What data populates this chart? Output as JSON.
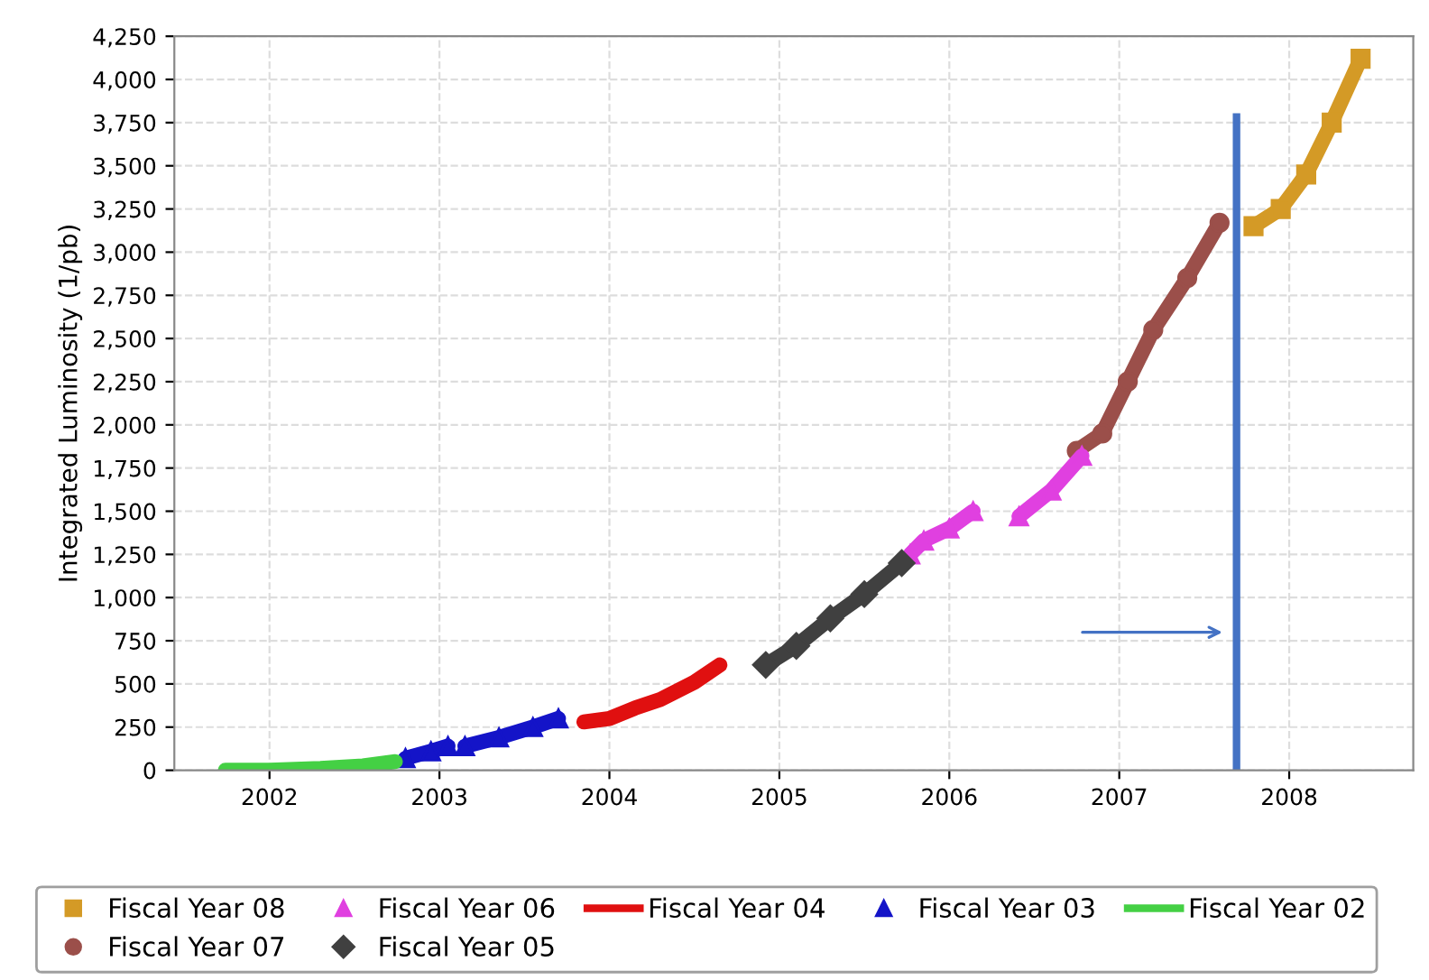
{
  "chart_data": {
    "type": "line",
    "ylabel": "Integrated Luminosity (1/pb)",
    "xlim": [
      2001.44,
      2008.73
    ],
    "xticks": [
      2002,
      2003,
      2004,
      2005,
      2006,
      2007,
      2008
    ],
    "ylim": [
      0,
      4250
    ],
    "yticks": [
      0,
      250,
      500,
      750,
      {
        "value": 1000,
        "label": "1,000"
      },
      {
        "value": 1250,
        "label": "1,250"
      },
      {
        "value": 1500,
        "label": "1,500"
      },
      {
        "value": 1750,
        "label": "1,750"
      },
      {
        "value": 2000,
        "label": "2,000"
      },
      {
        "value": 2250,
        "label": "2,250"
      },
      {
        "value": 2500,
        "label": "2,500"
      },
      {
        "value": 2750,
        "label": "2,750"
      },
      {
        "value": 3000,
        "label": "3,000"
      },
      {
        "value": 3250,
        "label": "3,250"
      },
      {
        "value": 3500,
        "label": "3,500"
      },
      {
        "value": 3750,
        "label": "3,750"
      },
      {
        "value": 4000,
        "label": "4,000"
      },
      {
        "value": 4250,
        "label": "4,250"
      }
    ],
    "grid": true,
    "legend": "bottom",
    "ref_lines": [
      {
        "axis": "x",
        "value": 2007.69,
        "color": "#4472c4"
      }
    ],
    "series": [
      {
        "name": "Fiscal Year 08",
        "color": "#d49a26",
        "marker": "square",
        "x": [
          2007.79,
          2007.95,
          2008.1,
          2008.25,
          2008.42
        ],
        "values": [
          3150,
          3250,
          3450,
          3750,
          4120
        ]
      },
      {
        "name": "Fiscal Year 07",
        "color": "#9b4f4a",
        "marker": "circle",
        "x": [
          2006.75,
          2006.9,
          2007.05,
          2007.2,
          2007.4,
          2007.59
        ],
        "values": [
          1850,
          1950,
          2250,
          2550,
          2850,
          3170
        ]
      },
      {
        "name": "Fiscal Year 06",
        "color": "#e040e0",
        "marker": "triangle",
        "x": [
          2005.77,
          2005.85,
          2006.0,
          2006.14,
          2006.27,
          2006.41,
          2006.6,
          2006.78
        ],
        "values": [
          1250,
          1330,
          1400,
          1500,
          null,
          1470,
          1620,
          1820
        ]
      },
      {
        "name": "Fiscal Year 05",
        "color": "#404040",
        "marker": "diamond",
        "x": [
          2004.92,
          2005.1,
          2005.3,
          2005.5,
          2005.72
        ],
        "values": [
          610,
          720,
          880,
          1020,
          1200
        ]
      },
      {
        "name": "Fiscal Year 04",
        "color": "#e01010",
        "marker": "none",
        "x": [
          2003.85,
          2004.0,
          2004.15,
          2004.3,
          2004.5,
          2004.65
        ],
        "values": [
          280,
          300,
          360,
          410,
          510,
          610
        ]
      },
      {
        "name": "Fiscal Year 03",
        "color": "#1414c8",
        "marker": "triangle",
        "x": [
          2002.8,
          2002.95,
          2003.05,
          2003.1,
          2003.15,
          2003.35,
          2003.55,
          2003.7
        ],
        "values": [
          70,
          110,
          140,
          null,
          140,
          190,
          250,
          300
        ]
      },
      {
        "name": "Fiscal Year 02",
        "color": "#44d044",
        "marker": "none",
        "x": [
          2001.74,
          2002.0,
          2002.3,
          2002.55,
          2002.74
        ],
        "values": [
          0,
          0,
          10,
          25,
          50
        ]
      }
    ]
  }
}
